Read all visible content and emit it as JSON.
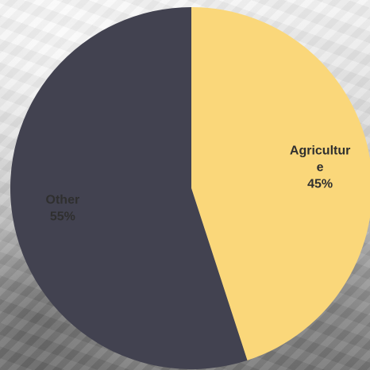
{
  "chart_data": {
    "type": "pie",
    "slices": [
      {
        "label_lines": [
          "Agricultur",
          "e"
        ],
        "value": 45,
        "percent_label": "45%",
        "color": "#FAD77A",
        "label_color": "#2F2F2F"
      },
      {
        "label_lines": [
          "Other"
        ],
        "value": 55,
        "percent_label": "55%",
        "color": "#424250",
        "label_color": "#FFFFFF"
      }
    ],
    "start_angle_deg": 0,
    "direction": "clockwise"
  }
}
